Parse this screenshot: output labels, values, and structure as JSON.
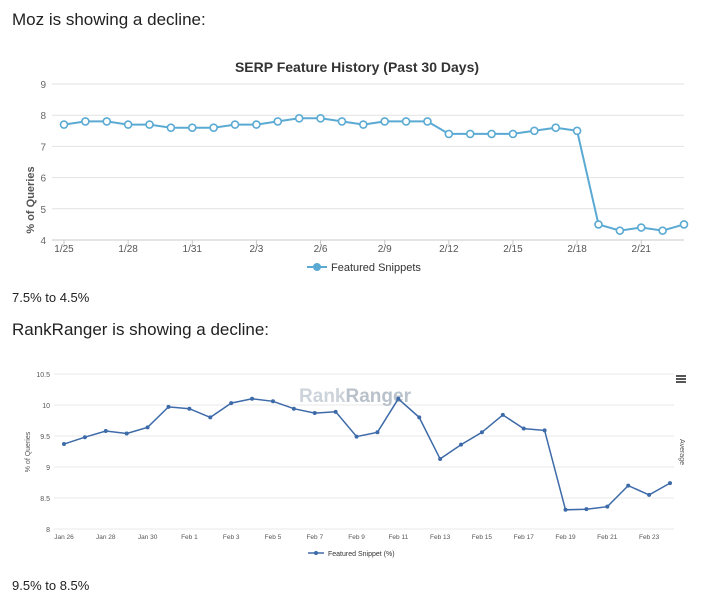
{
  "page": {
    "moz_heading": "Moz is showing a decline:",
    "moz_summary": "7.5% to 4.5%",
    "rr_heading": "RankRanger is showing a decline:",
    "rr_summary": "9.5% to 8.5%"
  },
  "chart_data": [
    {
      "type": "line",
      "title": "SERP Feature History (Past 30 Days)",
      "xlabel": "",
      "ylabel": "% of Queries",
      "ylim": [
        4,
        9
      ],
      "yticks": [
        "4",
        "5",
        "6",
        "7",
        "8",
        "9"
      ],
      "xtick_labels": [
        "1/25",
        "1/28",
        "1/31",
        "2/3",
        "2/6",
        "2/9",
        "2/12",
        "2/15",
        "2/18",
        "2/21"
      ],
      "xtick_index": [
        0,
        3,
        6,
        9,
        12,
        15,
        18,
        21,
        24,
        27
      ],
      "legend": "Featured Snippets",
      "legend_position": "bottom-center",
      "color": "#5aaad3",
      "series": [
        {
          "name": "Featured Snippets",
          "values": [
            7.7,
            7.8,
            7.8,
            7.7,
            7.7,
            7.6,
            7.6,
            7.6,
            7.7,
            7.7,
            7.8,
            7.9,
            7.9,
            7.8,
            7.7,
            7.8,
            7.8,
            7.8,
            7.4,
            7.4,
            7.4,
            7.4,
            7.5,
            7.6,
            7.5,
            4.5,
            4.3,
            4.4,
            4.3,
            4.5
          ]
        }
      ]
    },
    {
      "type": "line",
      "title": "",
      "watermark": {
        "part1": "Rank",
        "part2": "Ranger"
      },
      "ylabel": "% of Queries",
      "right_label": "Average",
      "ylim": [
        8,
        10.5
      ],
      "yticks": [
        "8",
        "8.5",
        "9",
        "9.5",
        "10",
        "10.5"
      ],
      "xtick_labels": [
        "Jan 26",
        "Jan 28",
        "Jan 30",
        "Feb 1",
        "Feb 3",
        "Feb 5",
        "Feb 7",
        "Feb 9",
        "Feb 11",
        "Feb 13",
        "Feb 15",
        "Feb 17",
        "Feb 19",
        "Feb 21",
        "Feb 23"
      ],
      "xtick_index": [
        0,
        2,
        4,
        6,
        8,
        10,
        12,
        14,
        16,
        18,
        20,
        22,
        24,
        26,
        28
      ],
      "legend": "Featured Snippet (%)",
      "legend_position": "bottom-center",
      "color": "#3d6aa8",
      "series": [
        {
          "name": "Featured Snippet (%)",
          "values": [
            9.37,
            9.48,
            9.58,
            9.54,
            9.64,
            9.97,
            9.94,
            9.8,
            10.03,
            10.1,
            10.06,
            9.94,
            9.87,
            9.89,
            9.49,
            9.56,
            10.1,
            9.8,
            9.13,
            9.36,
            9.56,
            9.84,
            9.62,
            9.59,
            8.31,
            8.32,
            8.36,
            8.7,
            8.55,
            8.74
          ]
        }
      ]
    }
  ]
}
